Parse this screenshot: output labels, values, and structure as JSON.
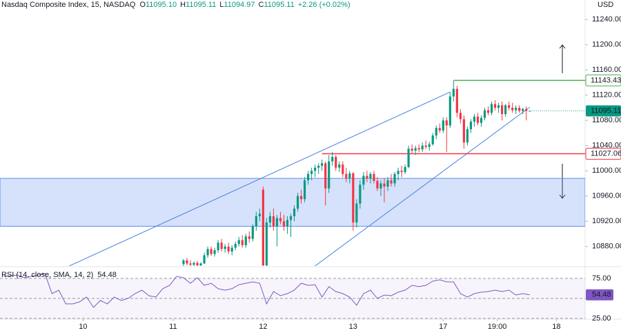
{
  "chart_data": [
    {
      "type": "candlestick",
      "title": "Nasdaq Composite Index, 15, NASDAQ",
      "ohlc": [
        {
          "label": "O",
          "value": "11095.10"
        },
        {
          "label": "H",
          "value": "11095.11"
        },
        {
          "label": "L",
          "value": "11094.97"
        },
        {
          "label": "C",
          "value": "11095.11"
        }
      ],
      "change": "+2.26 (+0.02%)",
      "unit": "USD",
      "up_color": "#089981",
      "down_color": "#f23645",
      "x": [
        -23,
        -22,
        -21,
        -20,
        -19,
        -18,
        -17,
        -16,
        -15,
        -14,
        -13,
        -12,
        -11,
        -10,
        -9,
        -8,
        -7,
        -6,
        -5,
        -4,
        -3,
        -2,
        -1,
        0,
        1,
        2,
        3,
        4,
        5,
        6,
        7,
        8,
        9,
        10,
        11,
        12,
        13,
        14,
        15,
        16,
        17,
        18,
        19,
        20,
        21,
        22,
        23,
        24,
        25,
        26,
        27,
        28,
        29,
        30,
        31,
        32,
        33,
        34,
        35,
        36,
        37,
        38,
        39,
        40,
        41,
        42,
        43,
        44,
        45,
        46,
        47,
        48,
        49,
        50,
        51,
        52,
        53,
        54,
        55,
        56,
        57,
        58,
        59,
        60,
        61,
        62,
        63,
        64,
        65,
        66,
        67,
        68,
        69,
        70,
        71,
        72,
        73,
        74,
        75,
        76,
        77
      ],
      "open": [
        10852,
        10858,
        10853,
        10851,
        10854,
        10850,
        10853,
        10866,
        10876,
        10868,
        10874,
        10886,
        10876,
        10880,
        10872,
        10878,
        10884,
        10890,
        10882,
        10896,
        10892,
        10912,
        10928,
        10970,
        10850,
        10918,
        10928,
        10912,
        10925,
        10920,
        10912,
        10922,
        10928,
        10940,
        10960,
        10955,
        10985,
        10995,
        11000,
        11005,
        11008,
        11012,
        10972,
        11015,
        11022,
        11005,
        11010,
        10995,
        10988,
        10996,
        10918,
        10948,
        10978,
        10992,
        10988,
        10995,
        10984,
        10972,
        10980,
        10975,
        10985,
        10980,
        10995,
        11000,
        10998,
        11006,
        11035,
        11032,
        11036,
        11034,
        11040,
        11038,
        11042,
        11056,
        11068,
        11064,
        11080,
        11072,
        11118,
        11130,
        11092,
        11082,
        11045,
        11066,
        11078,
        11086,
        11076,
        11084,
        11096,
        11092,
        11106,
        11100,
        11104,
        11090,
        11104,
        11100,
        11096,
        11100,
        11095,
        11098,
        11095.1
      ],
      "high": [
        10860,
        10862,
        10858,
        10856,
        10857,
        10855,
        10870,
        10880,
        10880,
        10878,
        10890,
        10892,
        10884,
        10886,
        10882,
        10888,
        10895,
        10898,
        10900,
        10904,
        10915,
        10935,
        10940,
        10975,
        10925,
        10935,
        10940,
        10930,
        10935,
        10930,
        10928,
        10932,
        10945,
        10965,
        10970,
        10990,
        11000,
        11005,
        11010,
        11012,
        11018,
        11015,
        11025,
        11030,
        11025,
        11015,
        11015,
        11005,
        11000,
        10998,
        10955,
        10985,
        10998,
        11000,
        10998,
        11000,
        10990,
        10985,
        10988,
        10990,
        10995,
        10998,
        11005,
        11008,
        11010,
        11040,
        11042,
        11040,
        11042,
        11045,
        11048,
        11046,
        11060,
        11072,
        11075,
        11085,
        11085,
        11125,
        11143,
        11135,
        11098,
        11088,
        11070,
        11082,
        11090,
        11092,
        11088,
        11100,
        11102,
        11110,
        11112,
        11108,
        11110,
        11106,
        11110,
        11108,
        11104,
        11104,
        11100,
        11102,
        11095.11
      ],
      "low": [
        10849,
        10850,
        10849,
        10849,
        10849,
        10849,
        10852,
        10862,
        10865,
        10864,
        10870,
        10872,
        10870,
        10868,
        10866,
        10874,
        10880,
        10878,
        10878,
        10886,
        10888,
        10905,
        10920,
        10840,
        10845,
        10910,
        10905,
        10880,
        10915,
        10905,
        10900,
        10895,
        10920,
        10935,
        10948,
        10950,
        10978,
        10985,
        10990,
        10995,
        11000,
        10945,
        10965,
        11008,
        11000,
        10998,
        10990,
        10982,
        10980,
        10905,
        10910,
        10940,
        10970,
        10982,
        10980,
        10980,
        10968,
        10960,
        10950,
        10968,
        10975,
        10975,
        10985,
        10990,
        10995,
        11004,
        11028,
        11025,
        11030,
        11030,
        11035,
        11032,
        11040,
        11050,
        11060,
        11060,
        11030,
        11068,
        11110,
        11085,
        11075,
        11035,
        11040,
        11060,
        11070,
        11072,
        11070,
        11080,
        11088,
        11088,
        11096,
        11092,
        11080,
        11086,
        11096,
        11092,
        11090,
        11092,
        11090,
        11080,
        11094.97
      ],
      "close": [
        10858,
        10853,
        10851,
        10854,
        10850,
        10853,
        10866,
        10876,
        10868,
        10874,
        10886,
        10876,
        10880,
        10872,
        10878,
        10884,
        10890,
        10882,
        10896,
        10892,
        10912,
        10928,
        10932,
        10850,
        10918,
        10928,
        10912,
        10925,
        10920,
        10912,
        10922,
        10928,
        10940,
        10960,
        10955,
        10985,
        10995,
        11000,
        11005,
        11008,
        11012,
        10972,
        11015,
        11022,
        11005,
        11010,
        10995,
        10988,
        10996,
        10918,
        10948,
        10978,
        10992,
        10988,
        10995,
        10984,
        10972,
        10980,
        10975,
        10985,
        10980,
        10995,
        11000,
        10998,
        11006,
        11035,
        11032,
        11036,
        11034,
        11040,
        11038,
        11042,
        11056,
        11068,
        11064,
        11080,
        11072,
        11118,
        11130,
        11092,
        11082,
        11045,
        11066,
        11078,
        11086,
        11076,
        11084,
        11096,
        11092,
        11106,
        11100,
        11104,
        11090,
        11104,
        11100,
        11096,
        11100,
        11095,
        11098,
        11095,
        11095.11
      ],
      "xlim": [
        -76,
        93
      ],
      "ylim": [
        10849,
        11271
      ],
      "yticks": [
        {
          "value": 11240,
          "label": "11240.00"
        },
        {
          "value": 11200,
          "label": "11200.00"
        },
        {
          "value": 11160,
          "label": "11160.00"
        },
        {
          "value": 11120,
          "label": "11120.00"
        },
        {
          "value": 11080,
          "label": "11080.00"
        },
        {
          "value": 11040,
          "label": "11040.00"
        },
        {
          "value": 11000,
          "label": "11000.00"
        },
        {
          "value": 10960,
          "label": "10960.00"
        },
        {
          "value": 10920,
          "label": "10920.00"
        },
        {
          "value": 10880,
          "label": "10880.00"
        }
      ],
      "xticks": [
        {
          "value": -52,
          "label": "10"
        },
        {
          "value": -26,
          "label": "11"
        },
        {
          "value": 0,
          "label": "12"
        },
        {
          "value": 26,
          "label": "13"
        },
        {
          "value": 52,
          "label": "17"
        },
        {
          "value": 67.6,
          "label": "19:00"
        },
        {
          "value": 84.7,
          "label": "18"
        }
      ],
      "rectangle": {
        "top": 10988,
        "bottom": 10912,
        "color": "#5b8def"
      },
      "trendlines": [
        {
          "x": [
            -56,
            54
          ],
          "y": [
            10849,
            11125
          ],
          "color": "#4a7fe0"
        },
        {
          "x": [
            15,
            77
          ],
          "y": [
            10849,
            11101
          ],
          "color": "#4a7fe0"
        }
      ],
      "hlines": [
        {
          "x": 55,
          "value": 11143.43,
          "color": "#4caf50"
        },
        {
          "x": 17,
          "value": 11027.06,
          "color": "#f23645"
        }
      ],
      "last_price": 11095.11
    },
    {
      "type": "line",
      "title": "RSI (14, close, SMA, 14, 2)",
      "color": "#7e57c2",
      "x": [
        -75,
        -73,
        -71,
        -69,
        -67,
        -65,
        -63,
        -61,
        -59,
        -57,
        -55,
        -53,
        -51,
        -49,
        -47,
        -45,
        -43,
        -41,
        -39,
        -37,
        -35,
        -33,
        -31,
        -29,
        -27,
        -25,
        -23,
        -21,
        -19,
        -17,
        -15,
        -13,
        -11,
        -9,
        -7,
        -5,
        -3,
        -1,
        1,
        3,
        5,
        7,
        9,
        11,
        13,
        15,
        17,
        19,
        21,
        23,
        25,
        27,
        29,
        31,
        33,
        35,
        37,
        39,
        41,
        43,
        45,
        47,
        49,
        51,
        53,
        55,
        57,
        59,
        61,
        63,
        65,
        67,
        69,
        71,
        73,
        75,
        77
      ],
      "values": [
        77.6,
        78.4,
        79.3,
        75.9,
        77.6,
        79.3,
        81.0,
        56.0,
        60.3,
        43.1,
        43.1,
        45.7,
        51.7,
        38.8,
        47.4,
        43.1,
        51.7,
        47.4,
        50.0,
        56.0,
        60.3,
        53.4,
        51.7,
        62.1,
        66.4,
        77.6,
        75.9,
        69.0,
        75.9,
        66.4,
        69.0,
        62.1,
        60.3,
        62.1,
        67.2,
        69.0,
        70.7,
        69.0,
        43.1,
        58.6,
        53.4,
        56.0,
        60.3,
        69.0,
        66.4,
        67.2,
        51.7,
        64.7,
        58.6,
        56.0,
        51.7,
        41.4,
        56.0,
        60.3,
        50.0,
        54.3,
        53.4,
        57.8,
        60.3,
        66.4,
        64.7,
        66.4,
        71.6,
        73.3,
        70.7,
        70.7,
        56.0,
        51.7,
        56.0,
        57.8,
        58.6,
        60.3,
        58.6,
        60.3,
        54.3,
        56.0,
        54.48
      ],
      "current": 54.48,
      "xlim": [
        -76,
        93
      ],
      "ylim": [
        24,
        88
      ],
      "yticks": [
        {
          "value": 75,
          "label": "75.00"
        },
        {
          "value": 25,
          "label": "25.00"
        }
      ],
      "middle_band": 50
    }
  ]
}
